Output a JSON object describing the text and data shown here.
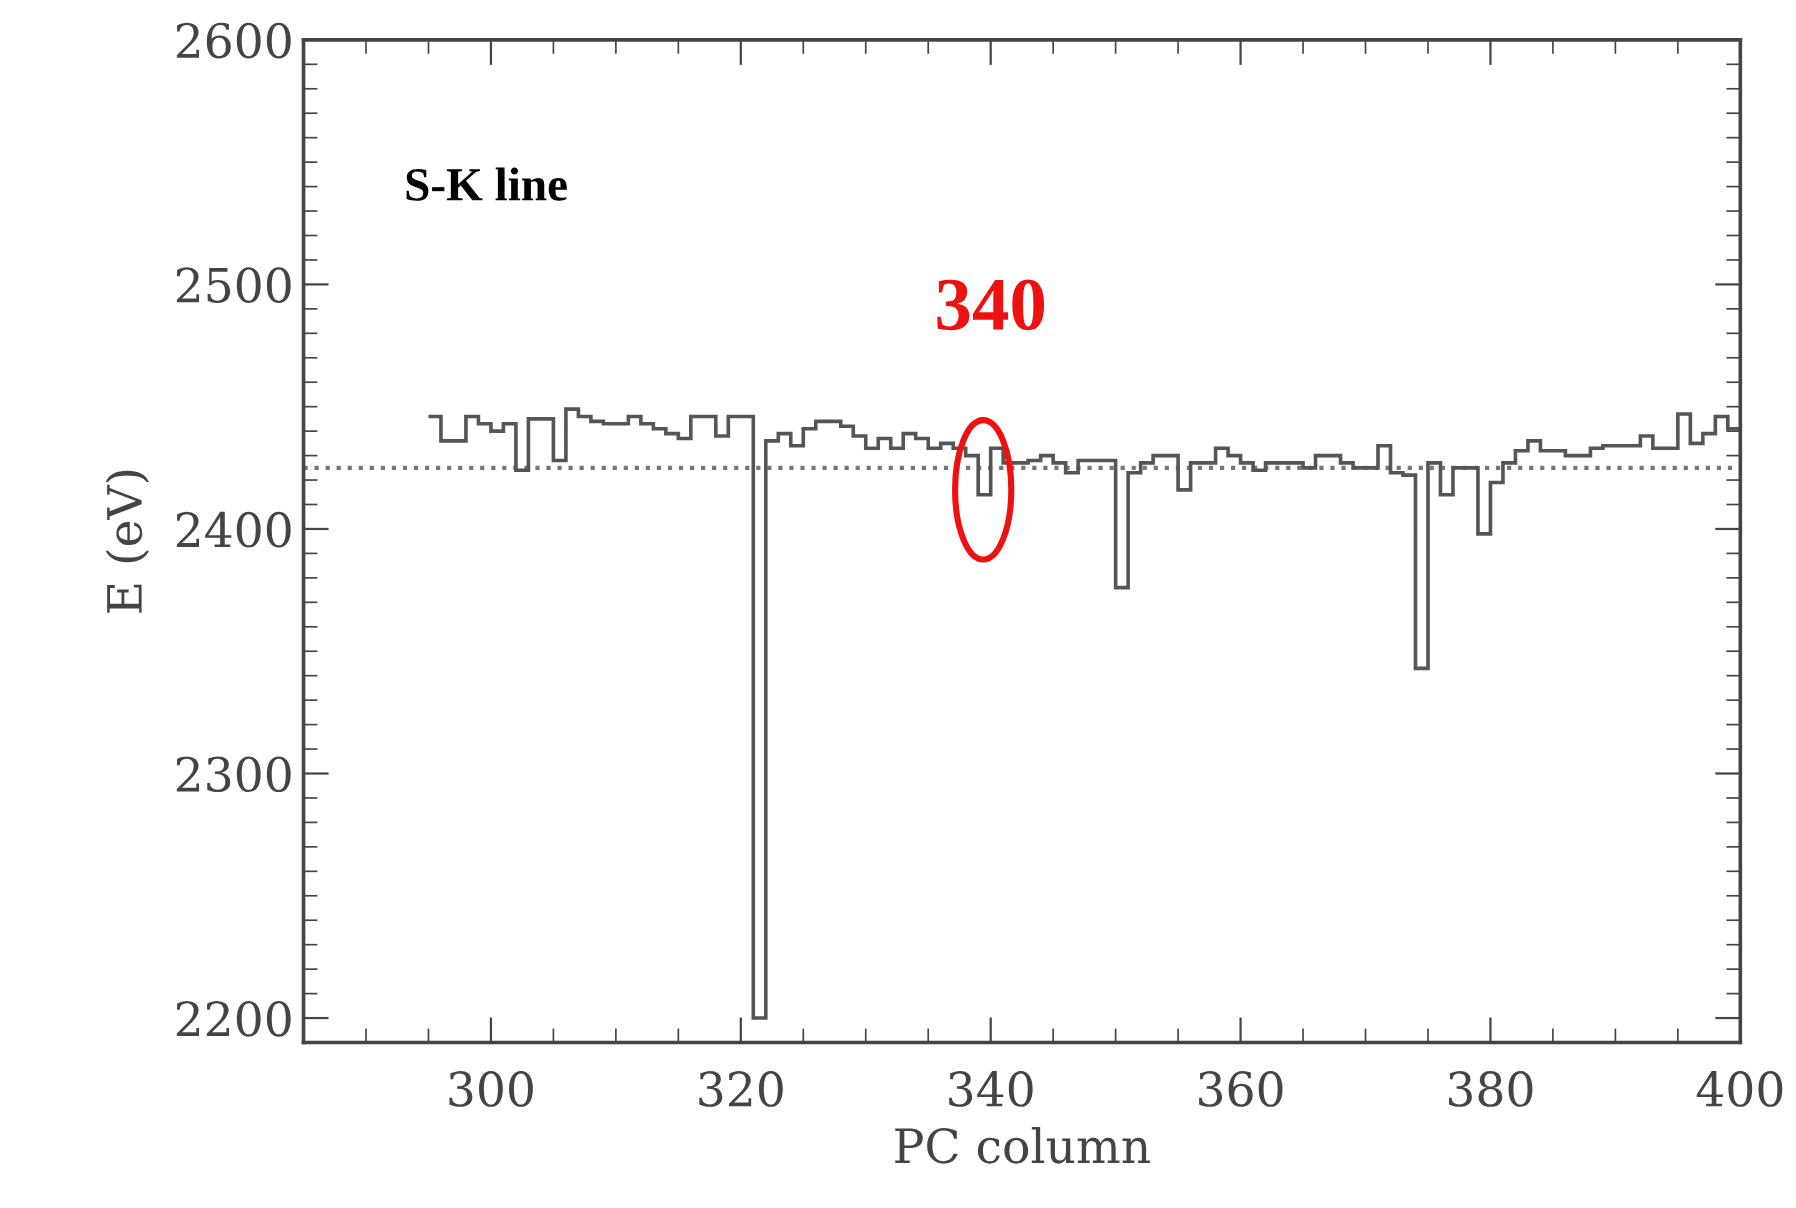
{
  "chart_data": {
    "type": "histogram",
    "xlabel": "PC column",
    "ylabel": "E (eV)",
    "bins": [
      295,
      296,
      297,
      298,
      299,
      300,
      301,
      302,
      303,
      304,
      305,
      306,
      307,
      308,
      309,
      310,
      311,
      312,
      313,
      314,
      315,
      316,
      317,
      318,
      319,
      320,
      321,
      322,
      323,
      324,
      325,
      326,
      327,
      328,
      329,
      330,
      331,
      332,
      333,
      334,
      335,
      336,
      337,
      338,
      339,
      340,
      341,
      342,
      343,
      344,
      345,
      346,
      347,
      348,
      349,
      350,
      351,
      352,
      353,
      354,
      355,
      356,
      357,
      358,
      359,
      360,
      361,
      362,
      363,
      364,
      365,
      366,
      367,
      368,
      369,
      370,
      371,
      372,
      373,
      374,
      375,
      376,
      377,
      378,
      379,
      380,
      381,
      382,
      383,
      384,
      385,
      386,
      387,
      388,
      389,
      390,
      391,
      392,
      393,
      394,
      395,
      396,
      397,
      398,
      399,
      400
    ],
    "values": [
      2446,
      2436,
      2436,
      2446,
      2443,
      2440,
      2443,
      2424,
      2445,
      2445,
      2428,
      2449,
      2446,
      2444,
      2443,
      2443,
      2446,
      2443,
      2441,
      2439,
      2437,
      2446,
      2446,
      2438,
      2446,
      2446,
      2200,
      2436,
      2439,
      2434,
      2441,
      2444,
      2444,
      2442,
      2438,
      2433,
      2437,
      2433,
      2439,
      2437,
      2433,
      2435,
      2433,
      2430,
      2414,
      2433,
      2427,
      2427,
      2428,
      2430,
      2427,
      2423,
      2428,
      2428,
      2428,
      2376,
      2423,
      2427,
      2430,
      2430,
      2416,
      2427,
      2427,
      2433,
      2430,
      2427,
      2424,
      2427,
      2427,
      2427,
      2425,
      2430,
      2430,
      2427,
      2425,
      2425,
      2434,
      2423,
      2422,
      2343,
      2427,
      2414,
      2425,
      2425,
      2398,
      2419,
      2427,
      2432,
      2436,
      2432,
      2432,
      2430,
      2430,
      2433,
      2434,
      2434,
      2434,
      2438,
      2433,
      2433,
      2447,
      2435,
      2439,
      2446,
      2441
    ],
    "color": "#555555",
    "xlim": [
      285,
      400
    ],
    "xticks": [
      300,
      320,
      340,
      360,
      380,
      400
    ],
    "ylim": [
      2190,
      2600
    ],
    "yticks": [
      2200,
      2300,
      2400,
      2500,
      2600
    ],
    "ref_lines": [
      {
        "axis": "y",
        "value": 2425,
        "line_style": "dotted",
        "color": "#777777"
      }
    ],
    "annotations": [
      "S-K line",
      {
        "text": "340",
        "x": 340,
        "y": 2416
      }
    ],
    "grid": false,
    "legend": false
  }
}
